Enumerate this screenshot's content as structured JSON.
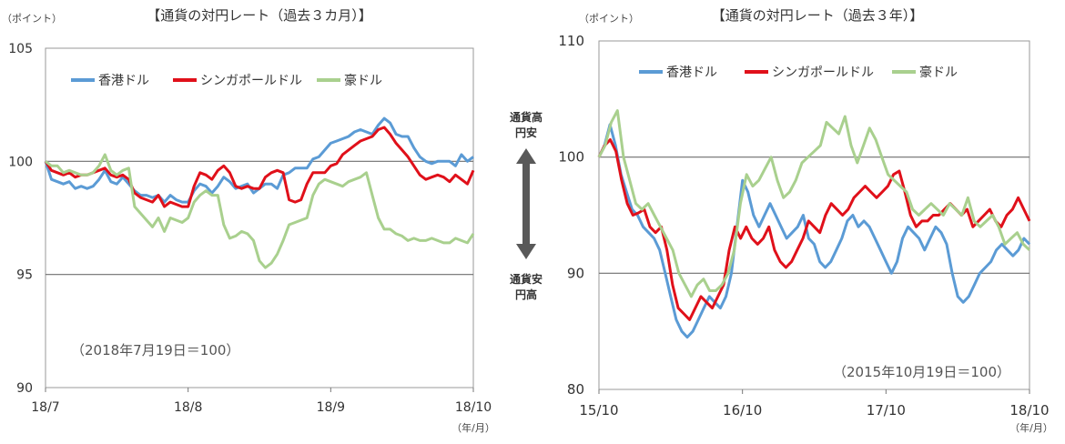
{
  "middle": {
    "top_text_1": "通貨高",
    "top_text_2": "円安",
    "bottom_text_1": "通貨安",
    "bottom_text_2": "円高"
  },
  "chart_data": [
    {
      "type": "line",
      "title": "【通貨の対円レート（過去３カ月）】",
      "ylabel": "（ポイント）",
      "xunit": "（年/月）",
      "note": "（2018年7月19日＝100）",
      "ylim": [
        90,
        105
      ],
      "yticks": [
        90,
        95,
        100,
        105
      ],
      "xlim": [
        0,
        3
      ],
      "xticks": [
        {
          "x": 0,
          "label": "18/7"
        },
        {
          "x": 1,
          "label": "18/8"
        },
        {
          "x": 2,
          "label": "18/9"
        },
        {
          "x": 3,
          "label": "18/10"
        }
      ],
      "gridlines": [
        95,
        100
      ],
      "series": [
        {
          "name": "香港ドル",
          "color": "#5b9bd5",
          "values": [
            100,
            99.2,
            99.1,
            99,
            99.1,
            98.8,
            98.9,
            98.8,
            98.9,
            99.2,
            99.6,
            99.1,
            99,
            99.3,
            99,
            98.7,
            98.5,
            98.5,
            98.4,
            98.5,
            98.2,
            98.5,
            98.3,
            98.2,
            98.2,
            98.7,
            99,
            98.9,
            98.6,
            98.9,
            99.3,
            99.1,
            98.8,
            98.9,
            99,
            98.6,
            98.8,
            99,
            99,
            98.8,
            99.4,
            99.5,
            99.7,
            99.7,
            99.7,
            100.1,
            100.2,
            100.5,
            100.8,
            100.9,
            101,
            101.1,
            101.3,
            101.4,
            101.3,
            101.2,
            101.6,
            101.9,
            101.7,
            101.2,
            101.1,
            101.1,
            100.6,
            100.2,
            100,
            99.9,
            100,
            100,
            100,
            99.8,
            100.3,
            100,
            100.2
          ]
        },
        {
          "name": "シンガポールドル",
          "color": "#e0101a",
          "values": [
            100,
            99.6,
            99.5,
            99.4,
            99.5,
            99.3,
            99.4,
            99.4,
            99.5,
            99.6,
            99.7,
            99.4,
            99.3,
            99.4,
            99.2,
            98.6,
            98.4,
            98.3,
            98.2,
            98.5,
            98,
            98.2,
            98.1,
            98,
            98,
            98.9,
            99.5,
            99.4,
            99.2,
            99.6,
            99.8,
            99.5,
            98.9,
            98.8,
            98.9,
            98.8,
            98.8,
            99.3,
            99.5,
            99.6,
            99.5,
            98.3,
            98.2,
            98.3,
            99,
            99.5,
            99.5,
            99.5,
            99.8,
            99.9,
            100.3,
            100.5,
            100.7,
            100.9,
            101,
            101.1,
            101.4,
            101.5,
            101.2,
            100.8,
            100.5,
            100.2,
            99.8,
            99.4,
            99.2,
            99.3,
            99.4,
            99.3,
            99.1,
            99.4,
            99.2,
            99,
            99.6
          ]
        },
        {
          "name": "豪ドル",
          "color": "#a9d08e",
          "values": [
            100,
            99.8,
            99.8,
            99.5,
            99.6,
            99.5,
            99.4,
            99.4,
            99.5,
            99.8,
            100.3,
            99.6,
            99.4,
            99.6,
            99.7,
            98,
            97.7,
            97.4,
            97.1,
            97.5,
            96.9,
            97.5,
            97.4,
            97.3,
            97.5,
            98.2,
            98.5,
            98.7,
            98.5,
            98.5,
            97.2,
            96.6,
            96.7,
            96.9,
            96.8,
            96.5,
            95.6,
            95.3,
            95.5,
            95.9,
            96.5,
            97.2,
            97.3,
            97.4,
            97.5,
            98.5,
            99,
            99.2,
            99.1,
            99,
            98.9,
            99.1,
            99.2,
            99.3,
            99.5,
            98.5,
            97.5,
            97,
            97,
            96.8,
            96.7,
            96.5,
            96.6,
            96.5,
            96.5,
            96.6,
            96.5,
            96.4,
            96.4,
            96.6,
            96.5,
            96.4,
            96.8
          ]
        }
      ]
    },
    {
      "type": "line",
      "title": "【通貨の対円レート（過去３年）】",
      "ylabel": "（ポイント）",
      "xunit": "（年/月）",
      "note": "（2015年10月19日＝100）",
      "ylim": [
        80,
        110
      ],
      "yticks": [
        80,
        90,
        100,
        110
      ],
      "xlim": [
        0,
        3
      ],
      "xticks": [
        {
          "x": 0,
          "label": "15/10"
        },
        {
          "x": 1,
          "label": "16/10"
        },
        {
          "x": 2,
          "label": "17/10"
        },
        {
          "x": 3,
          "label": "18/10"
        }
      ],
      "gridlines": [
        90,
        100
      ],
      "series": [
        {
          "name": "香港ドル",
          "color": "#5b9bd5",
          "values": [
            100,
            101,
            102.8,
            101,
            98.5,
            97,
            95.5,
            95,
            94,
            93.5,
            93,
            92,
            90,
            88,
            86,
            85,
            84.5,
            85,
            86,
            87,
            88,
            87.5,
            87,
            88,
            90,
            94,
            98,
            97,
            95,
            94,
            95,
            96,
            95,
            94,
            93,
            93.5,
            94,
            95,
            93,
            92.5,
            91,
            90.5,
            91,
            92,
            93,
            94.5,
            95,
            94,
            94.5,
            94,
            93,
            92,
            91,
            90,
            91,
            93,
            94,
            93.5,
            93,
            92,
            93,
            94,
            93.5,
            92.5,
            90,
            88,
            87.5,
            88,
            89,
            90,
            90.5,
            91,
            92,
            92.5,
            92,
            91.5,
            92,
            93,
            92.5
          ]
        },
        {
          "name": "シンガポールドル",
          "color": "#e0101a",
          "values": [
            100,
            101,
            101.5,
            100.5,
            98,
            96,
            95,
            95.2,
            95.5,
            94,
            93.5,
            94,
            92,
            89,
            87,
            86.5,
            86,
            87,
            88,
            87.5,
            87,
            88,
            89,
            92,
            94,
            93,
            94,
            93,
            92.5,
            93,
            94,
            92,
            91,
            90.5,
            91,
            92,
            93,
            94.5,
            94,
            93.5,
            95,
            96,
            95.5,
            95,
            95.5,
            96.5,
            97,
            97.5,
            97,
            96.5,
            97,
            97.5,
            98.5,
            98.8,
            97,
            95,
            94,
            94.5,
            94.5,
            95,
            95,
            95.5,
            96,
            95.5,
            95,
            95.5,
            94,
            94.5,
            95,
            95.5,
            94.5,
            94,
            95,
            95.5,
            96.5,
            95.5,
            94.5
          ]
        },
        {
          "name": "豪ドル",
          "color": "#a9d08e",
          "values": [
            100,
            101,
            103,
            104,
            100,
            98,
            96,
            95.5,
            96,
            95,
            94,
            93,
            92,
            90,
            89,
            88,
            89,
            89.5,
            88.5,
            88.5,
            89,
            90,
            92,
            96,
            98.5,
            97.5,
            98,
            99,
            100,
            98,
            96.5,
            97,
            98,
            99.5,
            100,
            100.5,
            101,
            103,
            102.5,
            102,
            103.5,
            101,
            99.5,
            101,
            102.5,
            101.5,
            100,
            98.5,
            98,
            97.5,
            97,
            95.5,
            95,
            95.5,
            96,
            95.5,
            95,
            96,
            95.5,
            95,
            96.5,
            94.5,
            94,
            94.5,
            95,
            94,
            92.5,
            93,
            93.5,
            92.5,
            92
          ]
        }
      ]
    }
  ]
}
